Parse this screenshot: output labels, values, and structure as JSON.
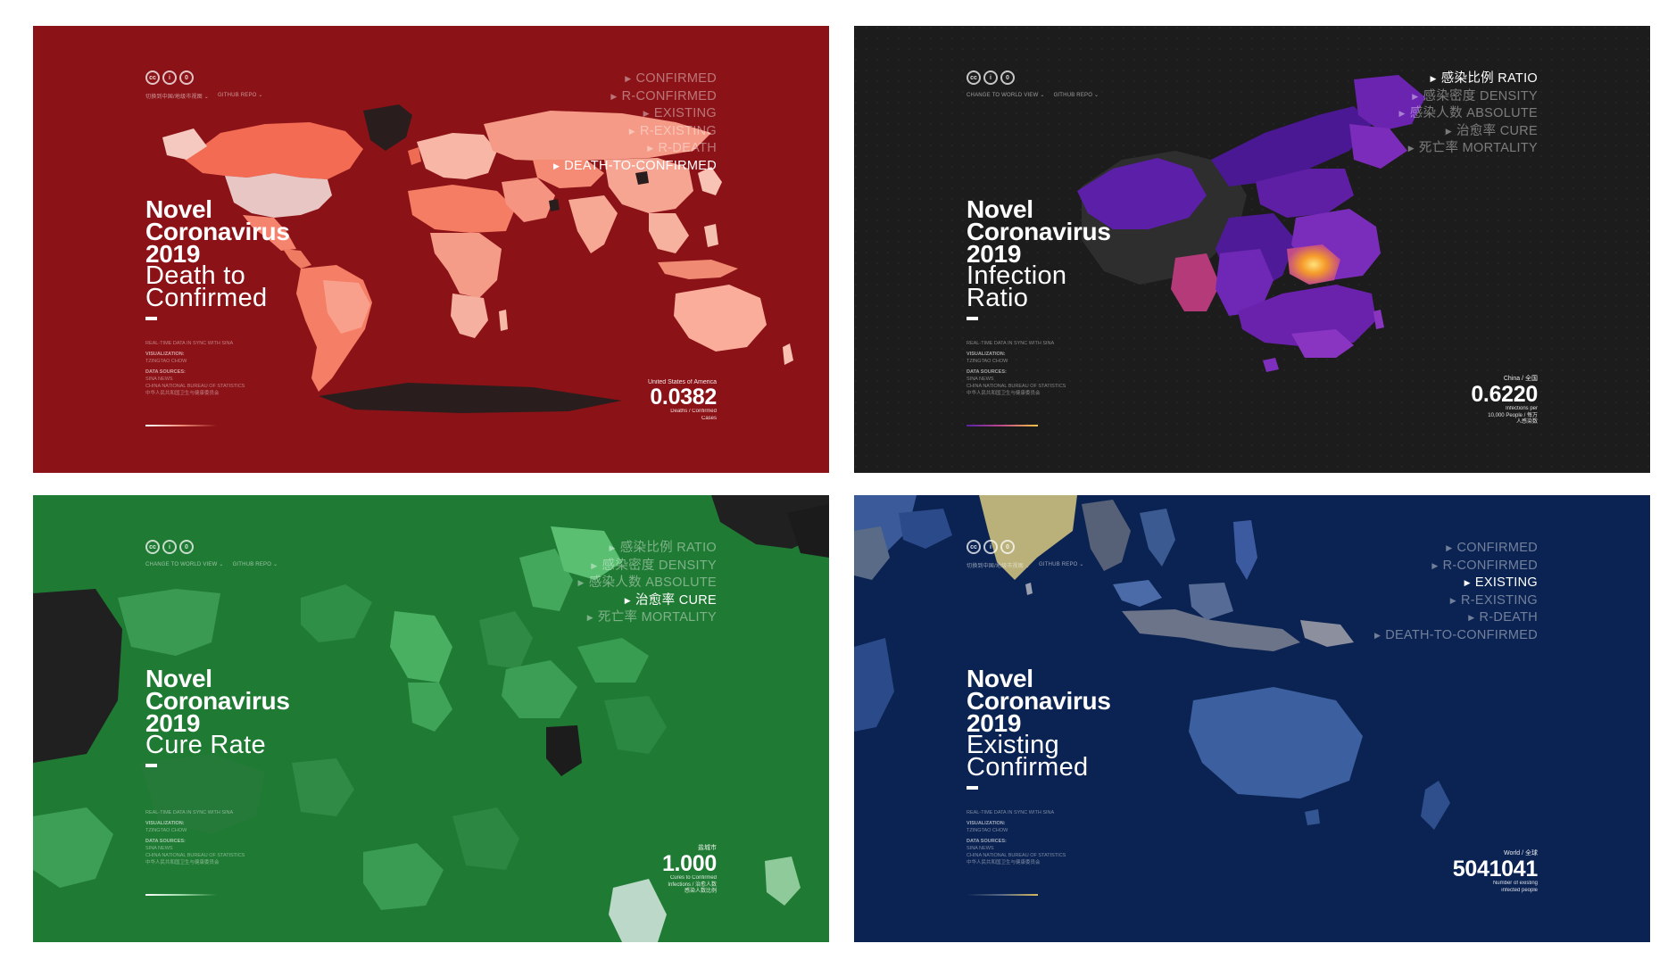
{
  "panels": [
    {
      "id": "death-to-confirmed",
      "colors": {
        "bg": "#8b1217",
        "accent": "#f08c78"
      },
      "nav": [
        "切换到中国/地级市视图 ⌄",
        "GITHUB REPO ⌄"
      ],
      "menu": [
        "CONFIRMED",
        "R-CONFIRMED",
        "EXISTING",
        "R-EXISTING",
        "R-DEATH",
        "DEATH-TO-CONFIRMED"
      ],
      "active_index": 5,
      "title": {
        "line1": "Novel",
        "line2": "Coronavirus",
        "line3": "2019",
        "sub1": "Death to",
        "sub2": "Confirmed"
      },
      "credits": {
        "realtime": "REAL-TIME DATA IN SYNC WITH SINA",
        "viz_label": "VISUALIZATION:",
        "viz_name": "TZINGTAO CHOW",
        "src_label": "DATA SOURCES:",
        "src1": "SINA NEWS",
        "src2": "CHINA NATIONAL BUREAU OF STATISTICS",
        "src3": "中华人民共和国卫生与健康委员会"
      },
      "stat": {
        "region": "United States of America",
        "value": "0.0382",
        "unit1": "Deaths / Confirmed",
        "unit2": "Cases",
        "unit3": ""
      }
    },
    {
      "id": "infection-ratio",
      "colors": {
        "bg": "#1c1c1c",
        "accent": "#8b2fc9"
      },
      "nav": [
        "CHANGE TO WORLD VIEW ⌄",
        "GITHUB REPO ⌄"
      ],
      "menu": [
        "感染比例 RATIO",
        "感染密度 DENSITY",
        "感染人数 ABSOLUTE",
        "治愈率 CURE",
        "死亡率 MORTALITY"
      ],
      "active_index": 0,
      "title": {
        "line1": "Novel",
        "line2": "Coronavirus",
        "line3": "2019",
        "sub1": "Infection",
        "sub2": "Ratio"
      },
      "credits": {
        "realtime": "REAL-TIME DATA IN SYNC WITH SINA",
        "viz_label": "VISUALIZATION:",
        "viz_name": "TZINGTAO CHOW",
        "src_label": "DATA SOURCES:",
        "src1": "SINA NEWS",
        "src2": "CHINA NATIONAL BUREAU OF STATISTICS",
        "src3": "中华人民共和国卫生与健康委员会"
      },
      "stat": {
        "region": "China / 全国",
        "value": "0.6220",
        "unit1": "Infections per",
        "unit2": "10,000 People / 每万",
        "unit3": "人感染数"
      }
    },
    {
      "id": "cure-rate",
      "colors": {
        "bg": "#1f7a33",
        "accent": "#6cc07c"
      },
      "nav": [
        "CHANGE TO WORLD VIEW ⌄",
        "GITHUB REPO ⌄"
      ],
      "menu": [
        "感染比例 RATIO",
        "感染密度 DENSITY",
        "感染人数 ABSOLUTE",
        "治愈率 CURE",
        "死亡率 MORTALITY"
      ],
      "active_index": 3,
      "title": {
        "line1": "Novel",
        "line2": "Coronavirus",
        "line3": "2019",
        "sub1": "Cure Rate",
        "sub2": ""
      },
      "credits": {
        "realtime": "REAL-TIME DATA IN SYNC WITH SINA",
        "viz_label": "VISUALIZATION:",
        "viz_name": "TZINGTAO CHOW",
        "src_label": "DATA SOURCES:",
        "src1": "SINA NEWS",
        "src2": "CHINA NATIONAL BUREAU OF STATISTICS",
        "src3": "中华人民共和国卫生与健康委员会"
      },
      "stat": {
        "region": "盐城市",
        "value": "1.000",
        "unit1": "Cures to Confirmed",
        "unit2": "Infections / 治愈人数",
        "unit3": "感染人数比例"
      }
    },
    {
      "id": "existing-confirmed",
      "colors": {
        "bg": "#0b2352",
        "accent": "#d9b85a"
      },
      "nav": [
        "切换到中国/地级市视图 ⌄",
        "GITHUB REPO ⌄"
      ],
      "menu": [
        "CONFIRMED",
        "R-CONFIRMED",
        "EXISTING",
        "R-EXISTING",
        "R-DEATH",
        "DEATH-TO-CONFIRMED"
      ],
      "active_index": 2,
      "title": {
        "line1": "Novel",
        "line2": "Coronavirus",
        "line3": "2019",
        "sub1": "Existing",
        "sub2": "Confirmed"
      },
      "credits": {
        "realtime": "REAL-TIME DATA IN SYNC WITH SINA",
        "viz_label": "VISUALIZATION:",
        "viz_name": "TZINGTAO CHOW",
        "src_label": "DATA SOURCES:",
        "src1": "SINA NEWS",
        "src2": "CHINA NATIONAL BUREAU OF STATISTICS",
        "src3": "中华人民共和国卫生与健康委员会"
      },
      "stat": {
        "region": "World / 全球",
        "value": "5041041",
        "unit1": "Number of existing",
        "unit2": "infected people",
        "unit3": ""
      }
    }
  ]
}
